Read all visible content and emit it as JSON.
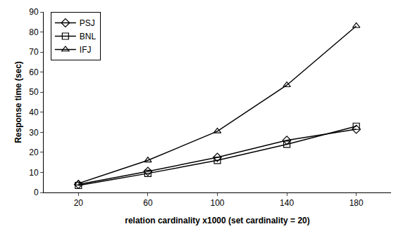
{
  "chart_data": {
    "type": "line",
    "x_label": "relation cardinality x1000 (set cardinality = 20)",
    "y_label": "Response time (sec)",
    "categories": [
      "20",
      "60",
      "100",
      "140",
      "180"
    ],
    "series": [
      {
        "name": "PSJ",
        "color": "#000000",
        "marker": "diamond",
        "values": [
          4,
          10.5,
          17.5,
          26,
          31.5
        ]
      },
      {
        "name": "BNL",
        "color": "#000000",
        "marker": "square",
        "values": [
          3.5,
          9.5,
          16,
          24,
          33
        ]
      },
      {
        "name": "IFJ",
        "color": "#000000",
        "marker": "triangle",
        "values": [
          4.5,
          16,
          30.5,
          53.5,
          83
        ]
      }
    ],
    "ylim": [
      0,
      90
    ],
    "yticks": [
      0,
      10,
      20,
      30,
      40,
      50,
      60,
      70,
      80,
      90
    ],
    "grid": false,
    "legend": "top-left"
  }
}
